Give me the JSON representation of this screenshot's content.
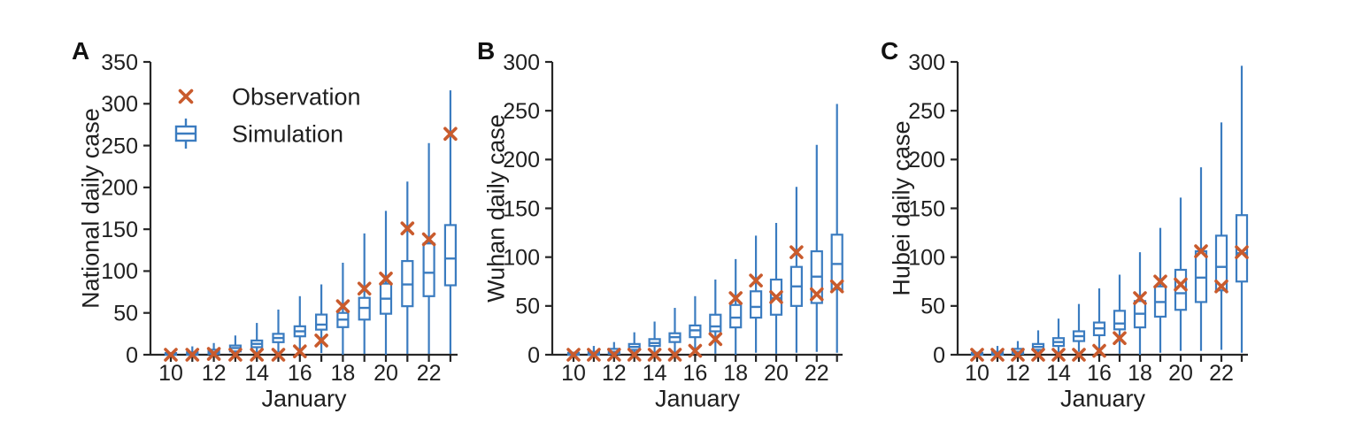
{
  "figure": {
    "background": "#ffffff",
    "month_label": "January"
  },
  "colors": {
    "observation": "#c95b2d",
    "simulation": "#3b7cc0",
    "axis": "#262626",
    "text": "#1f1f1f"
  },
  "legend": {
    "observation_label": "Observation",
    "simulation_label": "Simulation"
  },
  "chart_data": [
    {
      "type": "boxplot",
      "panel_label": "A",
      "ylabel": "National daily case",
      "xlabel": "January",
      "ylim": [
        0,
        350
      ],
      "ytick_step": 50,
      "days": [
        10,
        11,
        12,
        13,
        14,
        15,
        16,
        17,
        18,
        19,
        20,
        21,
        22,
        23
      ],
      "xtick_labeled_days": [
        10,
        12,
        14,
        16,
        18,
        20,
        22
      ],
      "show_legend": true,
      "observation": [
        0,
        0,
        1,
        0,
        0,
        0,
        4,
        17,
        58,
        79,
        91,
        151,
        138,
        264
      ],
      "boxes": [
        {
          "lo": 0,
          "q1": 0,
          "med": 1,
          "q3": 2,
          "hi": 3
        },
        {
          "lo": 0,
          "q1": 0,
          "med": 1,
          "q3": 3,
          "hi": 10
        },
        {
          "lo": 0,
          "q1": 1,
          "med": 3,
          "q3": 6,
          "hi": 14
        },
        {
          "lo": 0,
          "q1": 4,
          "med": 8,
          "q3": 11,
          "hi": 23
        },
        {
          "lo": 2,
          "q1": 9,
          "med": 13,
          "q3": 17,
          "hi": 38
        },
        {
          "lo": 3,
          "q1": 15,
          "med": 20,
          "q3": 25,
          "hi": 54
        },
        {
          "lo": 5,
          "q1": 22,
          "med": 28,
          "q3": 34,
          "hi": 70
        },
        {
          "lo": 2,
          "q1": 30,
          "med": 36,
          "q3": 48,
          "hi": 84
        },
        {
          "lo": 0,
          "q1": 33,
          "med": 42,
          "q3": 50,
          "hi": 110
        },
        {
          "lo": 1,
          "q1": 42,
          "med": 56,
          "q3": 68,
          "hi": 145
        },
        {
          "lo": 0,
          "q1": 49,
          "med": 67,
          "q3": 85,
          "hi": 172
        },
        {
          "lo": 1,
          "q1": 58,
          "med": 84,
          "q3": 112,
          "hi": 207
        },
        {
          "lo": 1,
          "q1": 70,
          "med": 98,
          "q3": 133,
          "hi": 253
        },
        {
          "lo": 1,
          "q1": 83,
          "med": 115,
          "q3": 155,
          "hi": 316
        }
      ]
    },
    {
      "type": "boxplot",
      "panel_label": "B",
      "ylabel": "Wuhan daily case",
      "xlabel": "January",
      "ylim": [
        0,
        300
      ],
      "ytick_step": 50,
      "days": [
        10,
        11,
        12,
        13,
        14,
        15,
        16,
        17,
        18,
        19,
        20,
        21,
        22,
        23
      ],
      "xtick_labeled_days": [
        10,
        12,
        14,
        16,
        18,
        20,
        22
      ],
      "show_legend": false,
      "observation": [
        0,
        0,
        0,
        0,
        0,
        0,
        4,
        16,
        58,
        76,
        59,
        105,
        62,
        70
      ],
      "boxes": [
        {
          "lo": 0,
          "q1": 0,
          "med": 1,
          "q3": 2,
          "hi": 3
        },
        {
          "lo": 0,
          "q1": 0,
          "med": 1,
          "q3": 3,
          "hi": 9
        },
        {
          "lo": 0,
          "q1": 1,
          "med": 3,
          "q3": 6,
          "hi": 13
        },
        {
          "lo": 0,
          "q1": 5,
          "med": 8,
          "q3": 11,
          "hi": 23
        },
        {
          "lo": 1,
          "q1": 9,
          "med": 12,
          "q3": 16,
          "hi": 34
        },
        {
          "lo": 2,
          "q1": 13,
          "med": 18,
          "q3": 22,
          "hi": 48
        },
        {
          "lo": 3,
          "q1": 18,
          "med": 25,
          "q3": 30,
          "hi": 60
        },
        {
          "lo": 1,
          "q1": 24,
          "med": 29,
          "q3": 41,
          "hi": 77
        },
        {
          "lo": 0,
          "q1": 28,
          "med": 38,
          "q3": 51,
          "hi": 98
        },
        {
          "lo": 2,
          "q1": 38,
          "med": 49,
          "q3": 65,
          "hi": 122
        },
        {
          "lo": 1,
          "q1": 41,
          "med": 58,
          "q3": 77,
          "hi": 135
        },
        {
          "lo": 2,
          "q1": 50,
          "med": 70,
          "q3": 90,
          "hi": 172
        },
        {
          "lo": 3,
          "q1": 53,
          "med": 80,
          "q3": 106,
          "hi": 215
        },
        {
          "lo": 2,
          "q1": 67,
          "med": 93,
          "q3": 123,
          "hi": 257
        }
      ]
    },
    {
      "type": "boxplot",
      "panel_label": "C",
      "ylabel": "Hubei daily case",
      "xlabel": "January",
      "ylim": [
        0,
        300
      ],
      "ytick_step": 50,
      "days": [
        10,
        11,
        12,
        13,
        14,
        15,
        16,
        17,
        18,
        19,
        20,
        21,
        22,
        23
      ],
      "xtick_labeled_days": [
        10,
        12,
        14,
        16,
        18,
        20,
        22
      ],
      "show_legend": false,
      "observation": [
        0,
        0,
        0,
        0,
        0,
        0,
        4,
        17,
        58,
        75,
        72,
        106,
        70,
        105
      ],
      "boxes": [
        {
          "lo": 0,
          "q1": 0,
          "med": 1,
          "q3": 2,
          "hi": 3
        },
        {
          "lo": 0,
          "q1": 0,
          "med": 1,
          "q3": 3,
          "hi": 9
        },
        {
          "lo": 0,
          "q1": 1,
          "med": 3,
          "q3": 6,
          "hi": 14
        },
        {
          "lo": 0,
          "q1": 5,
          "med": 8,
          "q3": 11,
          "hi": 25
        },
        {
          "lo": 2,
          "q1": 9,
          "med": 13,
          "q3": 17,
          "hi": 37
        },
        {
          "lo": 3,
          "q1": 14,
          "med": 19,
          "q3": 24,
          "hi": 52
        },
        {
          "lo": 5,
          "q1": 20,
          "med": 27,
          "q3": 33,
          "hi": 68
        },
        {
          "lo": 1,
          "q1": 26,
          "med": 32,
          "q3": 45,
          "hi": 82
        },
        {
          "lo": 0,
          "q1": 28,
          "med": 42,
          "q3": 55,
          "hi": 105
        },
        {
          "lo": 2,
          "q1": 39,
          "med": 54,
          "q3": 70,
          "hi": 130
        },
        {
          "lo": 4,
          "q1": 46,
          "med": 63,
          "q3": 87,
          "hi": 161
        },
        {
          "lo": 4,
          "q1": 54,
          "med": 79,
          "q3": 106,
          "hi": 192
        },
        {
          "lo": 5,
          "q1": 66,
          "med": 90,
          "q3": 122,
          "hi": 238
        },
        {
          "lo": 2,
          "q1": 75,
          "med": 104,
          "q3": 143,
          "hi": 296
        }
      ]
    }
  ]
}
